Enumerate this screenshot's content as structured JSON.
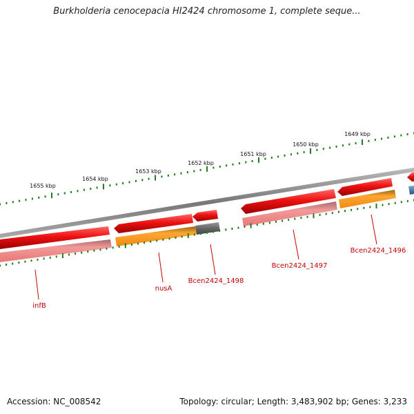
{
  "title": "Burkholderia cenocepacia HI2424 chromosome 1, complete seque...",
  "footer": {
    "accession": "Accession: NC_008542",
    "topology": "Topology: circular; Length: 3,483,902 bp; Genes: 3,233"
  },
  "colors": {
    "backbone": "#888888",
    "tick": "#1d7a1d",
    "cds_forward": "#ee1111",
    "cds_reverse": "#ff9922",
    "protein_product": "#f08a8a",
    "pseudo": "#666666",
    "rna": "#3377aa",
    "label": "#c40000"
  },
  "ruler": {
    "unit": "kbp",
    "labels": [
      "1655 kbp",
      "1654 kbp",
      "1653 kbp",
      "1652 kbp",
      "1651 kbp",
      "1650 kbp",
      "1649 kbp"
    ]
  },
  "gene_labels": [
    "infB",
    "nusA",
    "Bcen2424_1498",
    "Bcen2424_1497",
    "Bcen2424_1496"
  ]
}
